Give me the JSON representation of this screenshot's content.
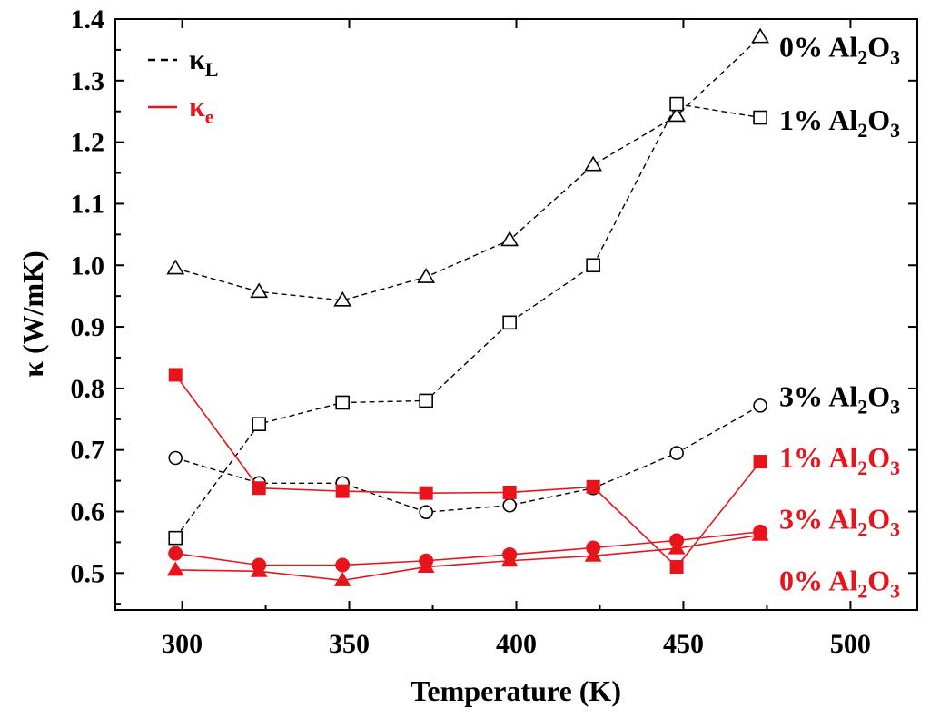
{
  "chart_data": {
    "type": "line",
    "xlabel": "Temperature (K)",
    "ylabel": "κ (W/mK)",
    "xlim": [
      280,
      520
    ],
    "ylim": [
      0.44,
      1.4
    ],
    "xticks": [
      300,
      350,
      400,
      450,
      500
    ],
    "xtick_labels": [
      "300",
      "350",
      "400",
      "450",
      "500"
    ],
    "yticks": [
      0.5,
      0.6,
      0.7,
      0.8,
      0.9,
      1.0,
      1.1,
      1.2,
      1.3,
      1.4
    ],
    "ytick_labels": [
      "0.5",
      "0.6",
      "0.7",
      "0.8",
      "0.9",
      "1.0",
      "1.1",
      "1.2",
      "1.3",
      "1.4"
    ],
    "x": [
      298,
      323,
      348,
      373,
      398,
      423,
      448,
      473
    ],
    "colors": {
      "lattice": "#000000",
      "electronic": "#e8141c"
    },
    "legend": {
      "position": "top-left",
      "items": [
        {
          "symbol": "κ",
          "sub": "L",
          "style": "dashed",
          "color": "#000000"
        },
        {
          "symbol": "κ",
          "sub": "e",
          "style": "solid",
          "color": "#e8141c"
        }
      ]
    },
    "series": [
      {
        "name": "κL 0% Al2O3",
        "kind": "lattice",
        "marker": "triangle",
        "filled": false,
        "values": [
          0.995,
          0.957,
          0.943,
          0.981,
          1.041,
          1.163,
          1.243,
          1.371
        ]
      },
      {
        "name": "κL 1% Al2O3",
        "kind": "lattice",
        "marker": "square",
        "filled": false,
        "values": [
          0.557,
          0.742,
          0.777,
          0.78,
          0.907,
          1.0,
          1.262,
          1.24
        ]
      },
      {
        "name": "κL 3% Al2O3",
        "kind": "lattice",
        "marker": "circle",
        "filled": false,
        "values": [
          0.687,
          0.646,
          0.646,
          0.599,
          0.61,
          0.638,
          0.695,
          0.772
        ]
      },
      {
        "name": "κe 1% Al2O3",
        "kind": "electronic",
        "marker": "square",
        "filled": true,
        "values": [
          0.822,
          0.638,
          0.633,
          0.63,
          0.631,
          0.64,
          0.51,
          0.681
        ]
      },
      {
        "name": "κe 3% Al2O3",
        "kind": "electronic",
        "marker": "circle",
        "filled": true,
        "values": [
          0.532,
          0.513,
          0.513,
          0.52,
          0.53,
          0.541,
          0.553,
          0.567
        ]
      },
      {
        "name": "κe 0% Al2O3",
        "kind": "electronic",
        "marker": "triangle",
        "filled": true,
        "values": [
          0.505,
          0.503,
          0.488,
          0.51,
          0.52,
          0.528,
          0.54,
          0.562
        ]
      }
    ],
    "annotations": [
      {
        "pct": "0%",
        "base": "Al",
        "sub1": "2",
        "mid": "O",
        "sub2": "3",
        "color": "#000000",
        "at_y": 1.355
      },
      {
        "pct": "1%",
        "base": "Al",
        "sub1": "2",
        "mid": "O",
        "sub2": "3",
        "color": "#000000",
        "at_y": 1.236
      },
      {
        "pct": "3%",
        "base": "Al",
        "sub1": "2",
        "mid": "O",
        "sub2": "3",
        "color": "#000000",
        "at_y": 0.787
      },
      {
        "pct": "1%",
        "base": "Al",
        "sub1": "2",
        "mid": "O",
        "sub2": "3",
        "color": "#e8141c",
        "at_y": 0.688
      },
      {
        "pct": "3%",
        "base": "Al",
        "sub1": "2",
        "mid": "O",
        "sub2": "3",
        "color": "#e8141c",
        "at_y": 0.588
      },
      {
        "pct": "0%",
        "base": "Al",
        "sub1": "2",
        "mid": "O",
        "sub2": "3",
        "color": "#e8141c",
        "at_y": 0.488
      }
    ]
  }
}
